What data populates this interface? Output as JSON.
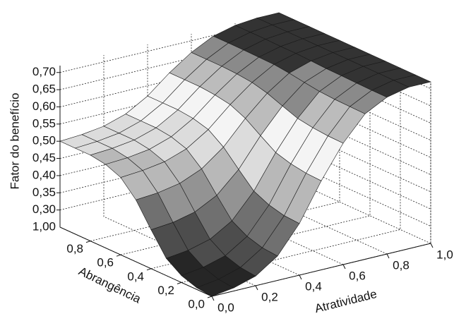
{
  "chart_data": {
    "type": "surface",
    "xlabel": "Atratividade",
    "ylabel": "Abrangência",
    "zlabel": "Fator do benefício",
    "x": [
      0,
      0.1,
      0.2,
      0.3,
      0.4,
      0.5,
      0.6,
      0.7,
      0.8,
      0.9,
      1
    ],
    "y": [
      0,
      0.1,
      0.2,
      0.3,
      0.4,
      0.5,
      0.6,
      0.7,
      0.8,
      0.9,
      1
    ],
    "z": [
      [
        0.25,
        0.259,
        0.278,
        0.321,
        0.4,
        0.509,
        0.603,
        0.673,
        0.706,
        0.72,
        0.72
      ],
      [
        0.255,
        0.264,
        0.283,
        0.325,
        0.403,
        0.511,
        0.604,
        0.674,
        0.706,
        0.72,
        0.72
      ],
      [
        0.27,
        0.279,
        0.297,
        0.338,
        0.414,
        0.518,
        0.608,
        0.675,
        0.707,
        0.72,
        0.72
      ],
      [
        0.3,
        0.308,
        0.325,
        0.363,
        0.434,
        0.531,
        0.615,
        0.678,
        0.708,
        0.72,
        0.72
      ],
      [
        0.363,
        0.369,
        0.384,
        0.417,
        0.477,
        0.56,
        0.631,
        0.684,
        0.709,
        0.72,
        0.72
      ],
      [
        0.43,
        0.435,
        0.447,
        0.474,
        0.522,
        0.59,
        0.648,
        0.691,
        0.711,
        0.72,
        0.72
      ],
      [
        0.475,
        0.48,
        0.49,
        0.512,
        0.553,
        0.61,
        0.659,
        0.696,
        0.713,
        0.72,
        0.72
      ],
      [
        0.493,
        0.497,
        0.506,
        0.527,
        0.565,
        0.618,
        0.664,
        0.697,
        0.713,
        0.72,
        0.72
      ],
      [
        0.5,
        0.504,
        0.513,
        0.533,
        0.57,
        0.622,
        0.666,
        0.698,
        0.714,
        0.72,
        0.72
      ],
      [
        0.5,
        0.504,
        0.513,
        0.533,
        0.57,
        0.622,
        0.666,
        0.698,
        0.714,
        0.72,
        0.72
      ],
      [
        0.5,
        0.504,
        0.513,
        0.533,
        0.57,
        0.622,
        0.666,
        0.698,
        0.714,
        0.72,
        0.72
      ]
    ],
    "xlim": [
      0,
      1
    ],
    "ylim": [
      0,
      1
    ],
    "zlim": [
      0.25,
      0.72
    ],
    "xticks": [
      {
        "value": 0,
        "label": "0,0"
      },
      {
        "value": 0.2,
        "label": "0,2"
      },
      {
        "value": 0.4,
        "label": "0,4"
      },
      {
        "value": 0.6,
        "label": "0,6"
      },
      {
        "value": 0.8,
        "label": "0,8"
      },
      {
        "value": 1,
        "label": "1,0"
      }
    ],
    "yticks": [
      {
        "value": 0,
        "label": "0,0"
      },
      {
        "value": 0.2,
        "label": "0,2"
      },
      {
        "value": 0.4,
        "label": "0,4"
      },
      {
        "value": 0.6,
        "label": "0,6"
      },
      {
        "value": 0.8,
        "label": "0,8"
      }
    ],
    "zticks": [
      {
        "value": 0.3,
        "label": "0,30"
      },
      {
        "value": 0.35,
        "label": "0,35"
      },
      {
        "value": 0.4,
        "label": "0,40"
      },
      {
        "value": 0.45,
        "label": "0,45"
      },
      {
        "value": 0.5,
        "label": "0,50"
      },
      {
        "value": 0.55,
        "label": "0,55"
      },
      {
        "value": 0.6,
        "label": "0,60"
      },
      {
        "value": 0.65,
        "label": "0,65"
      },
      {
        "value": 0.7,
        "label": "0,70"
      }
    ],
    "annotations": [
      "1,00"
    ],
    "band_colors": [
      "#262626",
      "#4d4d4d",
      "#707070",
      "#939393",
      "#b8b8b8",
      "#dcdcdc",
      "#f4f4f4",
      "#bcbcbc",
      "#8a8a8a",
      "#333333"
    ],
    "grid": true
  }
}
